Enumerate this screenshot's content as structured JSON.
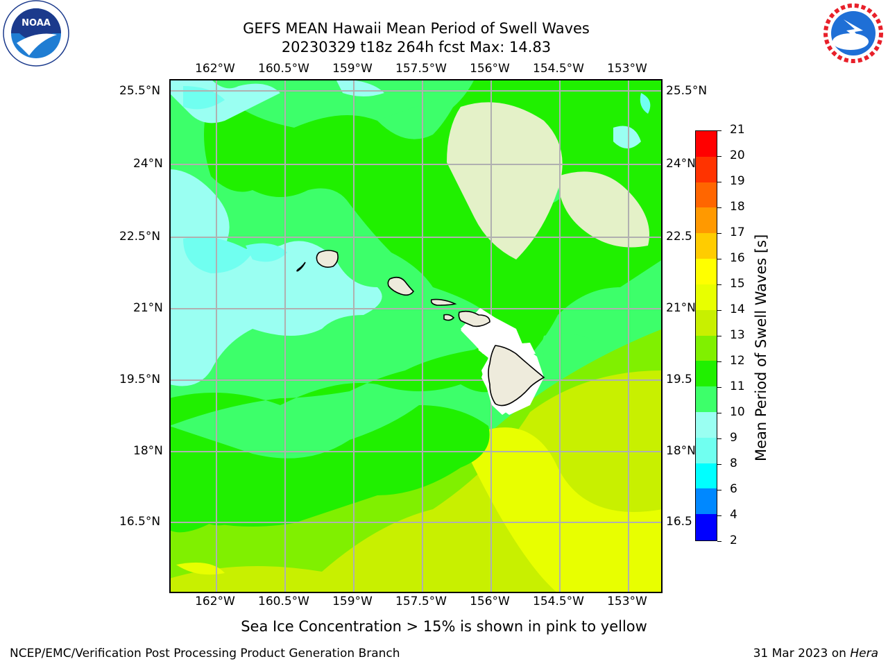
{
  "header": {
    "title_line1": "GEFS MEAN Hawaii Mean Period of Swell Waves",
    "title_line2": "20230329 t18z 264h fcst   Max: 14.83"
  },
  "logos": {
    "left": "NOAA",
    "left_ring_text": "NATIONAL OCEANIC AND ATMOSPHERIC ADMINISTRATION · U.S. DEPARTMENT OF COMMERCE",
    "right_ring_text": "NATIONAL WEATHER SERVICE"
  },
  "map": {
    "lon_labels": [
      "162°W",
      "160.5°W",
      "159°W",
      "157.5°W",
      "156°W",
      "154.5°W",
      "153°W"
    ],
    "lat_labels": [
      "25.5°N",
      "24°N",
      "22.5°N",
      "21°N",
      "19.5°N",
      "18°N",
      "16.5°N"
    ],
    "lat_labels_right": [
      "25.5°N",
      "24°N",
      "22.5",
      "21°N",
      "19.5",
      "18°N",
      "16.5"
    ],
    "colors": {
      "land": "#eeebdc",
      "c8_9": "#70fff0",
      "c9_10": "#9afff2",
      "c10_11": "#3dff6a",
      "c11_12": "#20f000",
      "c12_13": "#80f000",
      "c13_14": "#c8f000",
      "c14_15": "#e8ff00",
      "grid": "#b0b0b0"
    }
  },
  "colorbar": {
    "title": "Mean Period of Swell Waves [s]",
    "ticks": [
      "21",
      "20",
      "19",
      "18",
      "17",
      "16",
      "15",
      "14",
      "13",
      "12",
      "11",
      "10",
      "9",
      "8",
      "6",
      "4",
      "2"
    ],
    "colors": [
      "#ff0000",
      "#ff3300",
      "#ff6600",
      "#ff9900",
      "#ffcc00",
      "#ffff00",
      "#e8ff00",
      "#c8f000",
      "#80f000",
      "#20f000",
      "#3dff6a",
      "#9afff2",
      "#70fff0",
      "#00ffff",
      "#0088ff",
      "#0000ff"
    ]
  },
  "footer": {
    "note": "Sea Ice Concentration > 15% is shown in pink to yellow",
    "left": "NCEP/EMC/Verification Post Processing Product Generation Branch",
    "right_prefix": "31 Mar 2023 on ",
    "right_host": "Hera"
  }
}
